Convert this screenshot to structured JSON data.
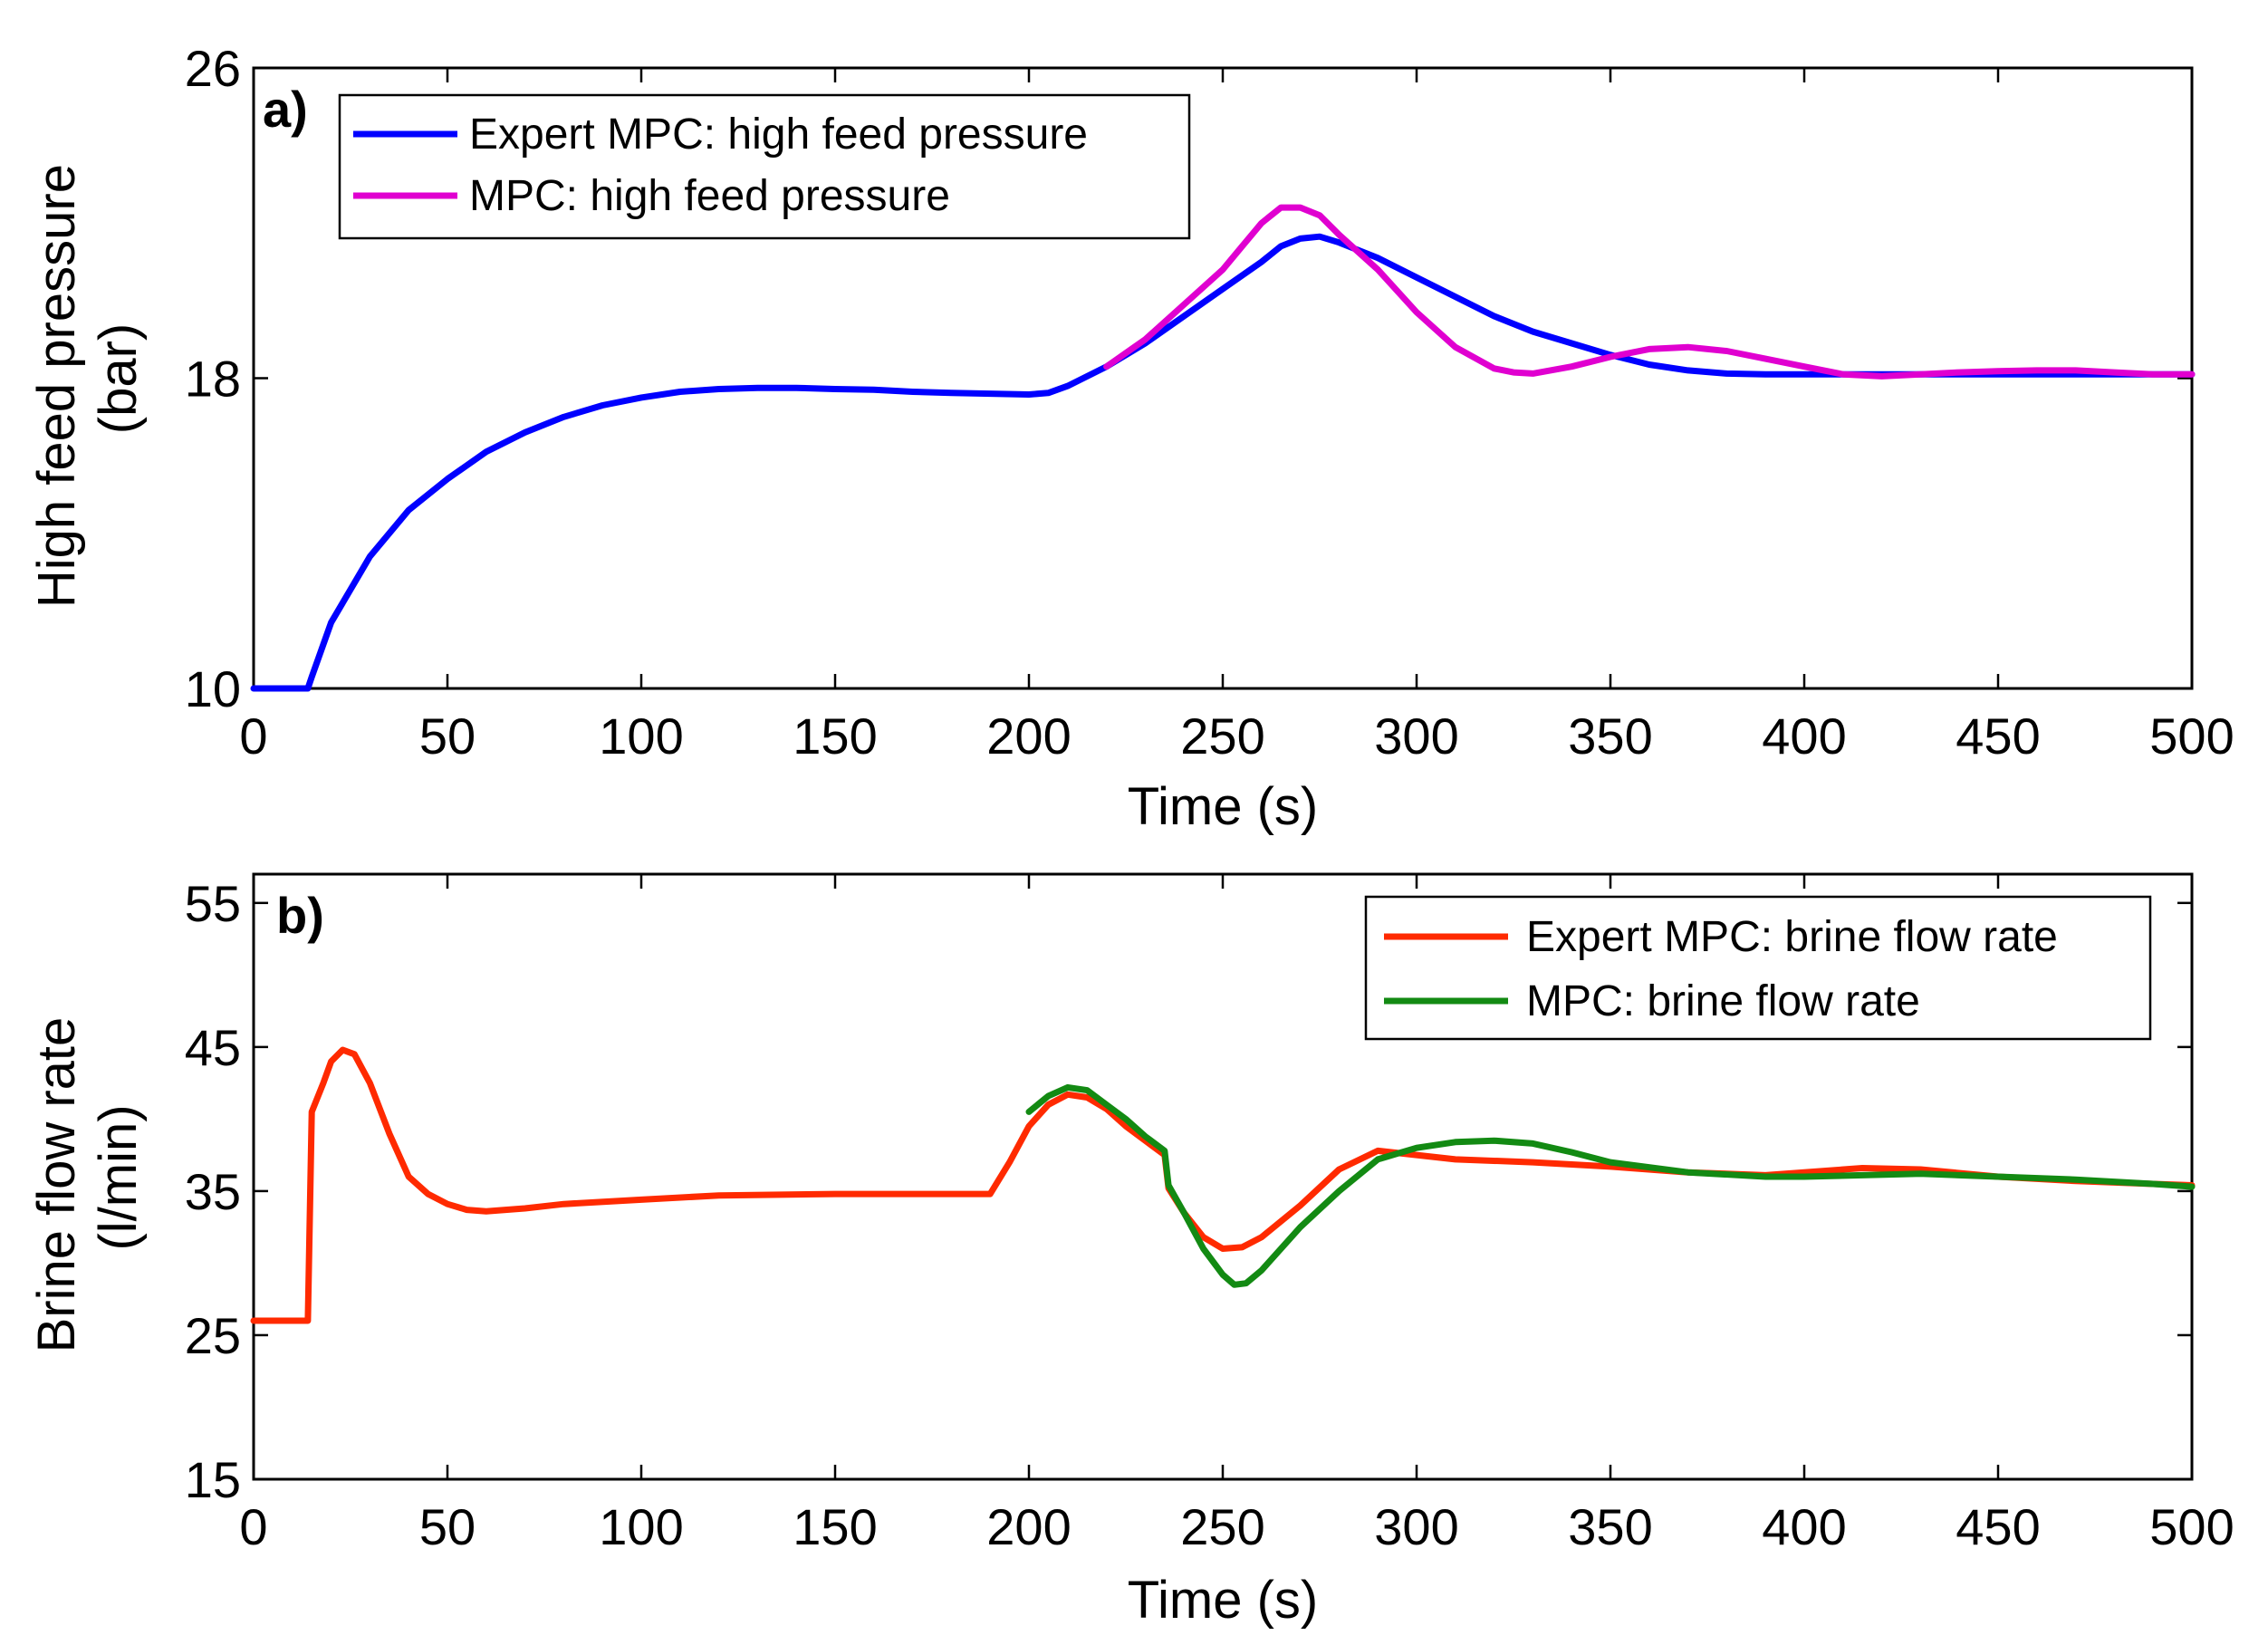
{
  "chart_data": [
    {
      "type": "line",
      "panel_label": "a)",
      "xlabel": "Time (s)",
      "ylabel_lines": [
        "High feed pressure",
        "(bar)"
      ],
      "xlim": [
        0,
        500
      ],
      "ylim": [
        10,
        26
      ],
      "xticks": [
        0,
        50,
        100,
        150,
        200,
        250,
        300,
        350,
        400,
        450,
        500
      ],
      "yticks": [
        10,
        18,
        26
      ],
      "grid": false,
      "legend_position": "top-left",
      "series": [
        {
          "name": "Expert MPC: high feed pressure",
          "color": "#0000ff",
          "points": [
            [
              0,
              10
            ],
            [
              14,
              10
            ],
            [
              15,
              10.3
            ],
            [
              20,
              11.7
            ],
            [
              30,
              13.4
            ],
            [
              40,
              14.6
            ],
            [
              50,
              15.4
            ],
            [
              60,
              16.1
            ],
            [
              70,
              16.6
            ],
            [
              80,
              17.0
            ],
            [
              90,
              17.3
            ],
            [
              100,
              17.5
            ],
            [
              110,
              17.65
            ],
            [
              120,
              17.72
            ],
            [
              130,
              17.75
            ],
            [
              140,
              17.75
            ],
            [
              150,
              17.72
            ],
            [
              160,
              17.7
            ],
            [
              170,
              17.65
            ],
            [
              180,
              17.62
            ],
            [
              190,
              17.6
            ],
            [
              200,
              17.58
            ],
            [
              205,
              17.62
            ],
            [
              210,
              17.8
            ],
            [
              220,
              18.3
            ],
            [
              230,
              18.9
            ],
            [
              240,
              19.6
            ],
            [
              250,
              20.3
            ],
            [
              260,
              21.0
            ],
            [
              265,
              21.4
            ],
            [
              270,
              21.6
            ],
            [
              275,
              21.65
            ],
            [
              280,
              21.5
            ],
            [
              290,
              21.1
            ],
            [
              300,
              20.6
            ],
            [
              310,
              20.1
            ],
            [
              320,
              19.6
            ],
            [
              330,
              19.2
            ],
            [
              340,
              18.9
            ],
            [
              350,
              18.6
            ],
            [
              360,
              18.35
            ],
            [
              370,
              18.2
            ],
            [
              380,
              18.12
            ],
            [
              390,
              18.1
            ],
            [
              400,
              18.1
            ],
            [
              420,
              18.1
            ],
            [
              450,
              18.1
            ],
            [
              480,
              18.1
            ],
            [
              500,
              18.1
            ]
          ]
        },
        {
          "name": "MPC: high feed pressure",
          "color": "#e000d0",
          "points": [
            [
              220,
              18.3
            ],
            [
              230,
              19.0
            ],
            [
              240,
              19.9
            ],
            [
              250,
              20.8
            ],
            [
              255,
              21.4
            ],
            [
              260,
              22.0
            ],
            [
              265,
              22.4
            ],
            [
              270,
              22.4
            ],
            [
              275,
              22.2
            ],
            [
              280,
              21.7
            ],
            [
              290,
              20.8
            ],
            [
              300,
              19.7
            ],
            [
              310,
              18.8
            ],
            [
              320,
              18.25
            ],
            [
              325,
              18.15
            ],
            [
              330,
              18.12
            ],
            [
              340,
              18.3
            ],
            [
              350,
              18.55
            ],
            [
              360,
              18.75
            ],
            [
              370,
              18.8
            ],
            [
              380,
              18.7
            ],
            [
              390,
              18.5
            ],
            [
              400,
              18.3
            ],
            [
              410,
              18.1
            ],
            [
              420,
              18.05
            ],
            [
              430,
              18.1
            ],
            [
              440,
              18.15
            ],
            [
              450,
              18.18
            ],
            [
              460,
              18.2
            ],
            [
              470,
              18.2
            ],
            [
              480,
              18.15
            ],
            [
              490,
              18.1
            ],
            [
              500,
              18.1
            ]
          ]
        }
      ]
    },
    {
      "type": "line",
      "panel_label": "b)",
      "xlabel": "Time (s)",
      "ylabel_lines": [
        "Brine flow rate",
        "(l/min)"
      ],
      "xlim": [
        0,
        500
      ],
      "ylim": [
        15,
        57
      ],
      "xticks": [
        0,
        50,
        100,
        150,
        200,
        250,
        300,
        350,
        400,
        450,
        500
      ],
      "yticks": [
        15,
        25,
        35,
        45,
        55
      ],
      "grid": false,
      "legend_position": "top-right",
      "series": [
        {
          "name": "Expert MPC: brine flow rate",
          "color": "#ff2a00",
          "points": [
            [
              0,
              26
            ],
            [
              14,
              26
            ],
            [
              15,
              40.5
            ],
            [
              18,
              42.5
            ],
            [
              20,
              44
            ],
            [
              23,
              44.8
            ],
            [
              26,
              44.5
            ],
            [
              30,
              42.5
            ],
            [
              35,
              39
            ],
            [
              40,
              36
            ],
            [
              45,
              34.8
            ],
            [
              50,
              34.1
            ],
            [
              55,
              33.7
            ],
            [
              60,
              33.6
            ],
            [
              70,
              33.8
            ],
            [
              80,
              34.1
            ],
            [
              100,
              34.4
            ],
            [
              120,
              34.7
            ],
            [
              150,
              34.8
            ],
            [
              170,
              34.8
            ],
            [
              190,
              34.8
            ],
            [
              195,
              37
            ],
            [
              200,
              39.5
            ],
            [
              205,
              41
            ],
            [
              210,
              41.7
            ],
            [
              215,
              41.5
            ],
            [
              220,
              40.7
            ],
            [
              225,
              39.5
            ],
            [
              230,
              38.5
            ],
            [
              235,
              37.5
            ],
            [
              236,
              35.2
            ],
            [
              240,
              33.5
            ],
            [
              245,
              31.8
            ],
            [
              250,
              31.0
            ],
            [
              255,
              31.1
            ],
            [
              260,
              31.8
            ],
            [
              270,
              34
            ],
            [
              280,
              36.5
            ],
            [
              290,
              37.8
            ],
            [
              300,
              37.5
            ],
            [
              310,
              37.2
            ],
            [
              330,
              37.0
            ],
            [
              350,
              36.7
            ],
            [
              370,
              36.3
            ],
            [
              390,
              36.1
            ],
            [
              400,
              36.3
            ],
            [
              415,
              36.6
            ],
            [
              430,
              36.5
            ],
            [
              450,
              36.0
            ],
            [
              470,
              35.7
            ],
            [
              490,
              35.5
            ],
            [
              500,
              35.4
            ]
          ]
        },
        {
          "name": "MPC: brine flow rate",
          "color": "#138a13",
          "points": [
            [
              200,
              40.5
            ],
            [
              205,
              41.6
            ],
            [
              210,
              42.2
            ],
            [
              215,
              42.0
            ],
            [
              220,
              41.0
            ],
            [
              225,
              40.0
            ],
            [
              230,
              38.8
            ],
            [
              235,
              37.8
            ],
            [
              236,
              35.4
            ],
            [
              240,
              33.5
            ],
            [
              245,
              31.0
            ],
            [
              250,
              29.2
            ],
            [
              253,
              28.5
            ],
            [
              256,
              28.6
            ],
            [
              260,
              29.5
            ],
            [
              270,
              32.5
            ],
            [
              280,
              35.0
            ],
            [
              290,
              37.2
            ],
            [
              300,
              38.0
            ],
            [
              310,
              38.4
            ],
            [
              320,
              38.5
            ],
            [
              330,
              38.3
            ],
            [
              340,
              37.7
            ],
            [
              350,
              37.0
            ],
            [
              370,
              36.3
            ],
            [
              390,
              36.0
            ],
            [
              400,
              36.0
            ],
            [
              415,
              36.1
            ],
            [
              430,
              36.2
            ],
            [
              450,
              36.0
            ],
            [
              470,
              35.8
            ],
            [
              490,
              35.5
            ],
            [
              500,
              35.3
            ]
          ]
        }
      ]
    }
  ]
}
